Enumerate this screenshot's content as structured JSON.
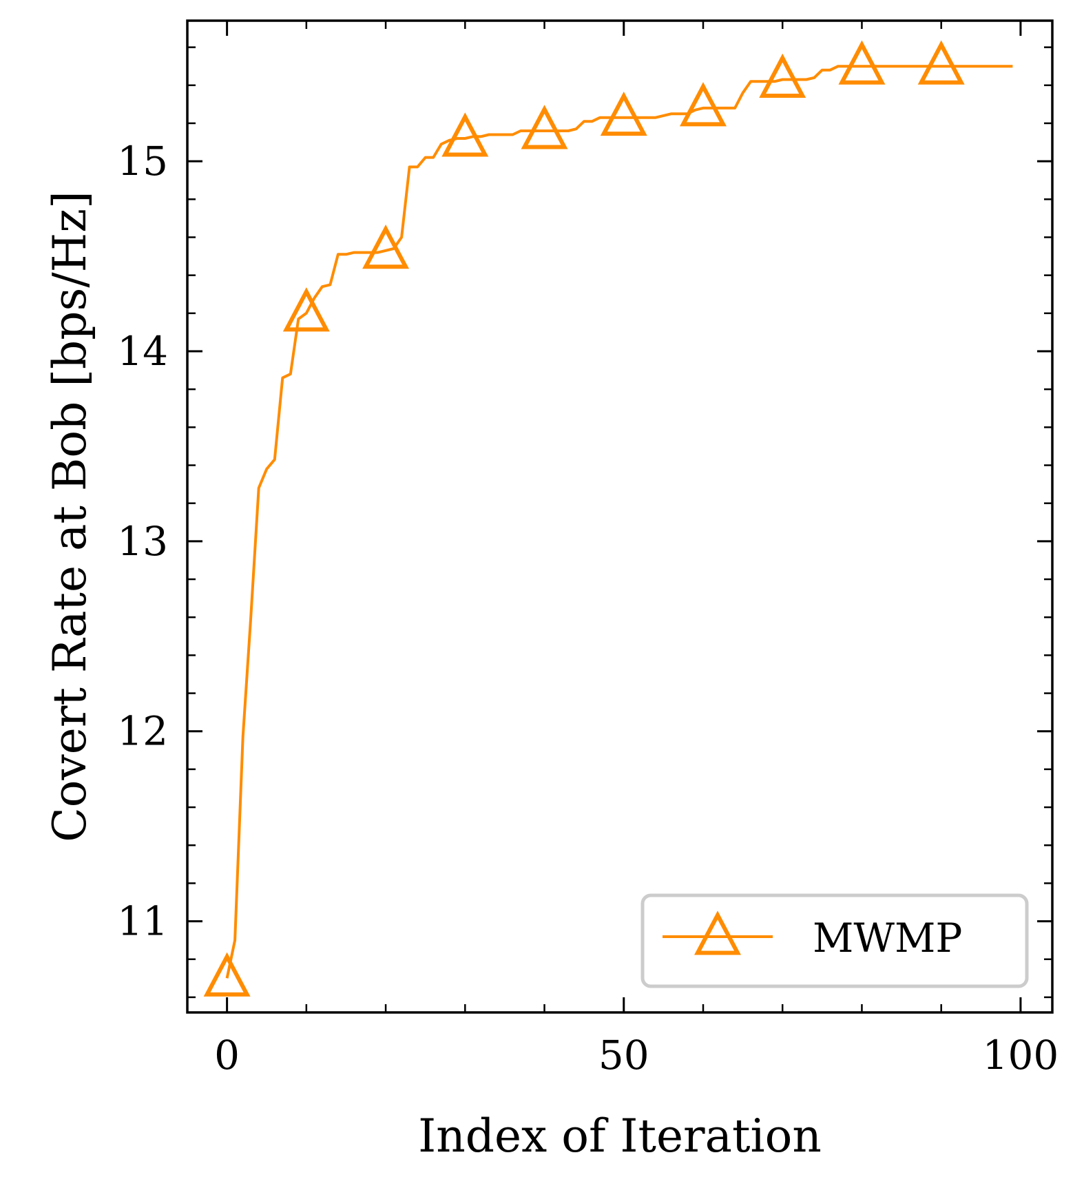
{
  "chart_data": {
    "type": "line",
    "title": "",
    "xlabel": "Index of Iteration",
    "ylabel": "Covert Rate at Bob [bps/Hz]",
    "xlim": [
      -5,
      104
    ],
    "ylim": [
      10.52,
      15.74
    ],
    "x_ticks": [
      0,
      50,
      100
    ],
    "x_tick_labels": [
      "0",
      "50",
      "100"
    ],
    "y_ticks": [
      11,
      12,
      13,
      14,
      15
    ],
    "y_tick_labels": [
      "11",
      "12",
      "13",
      "14",
      "15"
    ],
    "x_minor_step": 10,
    "y_minor_step": 0.2,
    "grid": false,
    "legend": {
      "position": "lower-right"
    },
    "series": [
      {
        "name": "MWMP",
        "color": "#ff8c00",
        "marker": "open-triangle-up",
        "marker_every": 10,
        "x": [
          0,
          1,
          2,
          3,
          4,
          5,
          6,
          7,
          8,
          9,
          10,
          11,
          12,
          13,
          14,
          15,
          16,
          17,
          18,
          19,
          20,
          21,
          22,
          23,
          24,
          25,
          26,
          27,
          28,
          29,
          30,
          31,
          32,
          33,
          34,
          35,
          36,
          37,
          38,
          39,
          40,
          41,
          42,
          43,
          44,
          45,
          46,
          47,
          48,
          49,
          50,
          51,
          52,
          53,
          54,
          55,
          56,
          57,
          58,
          59,
          60,
          61,
          62,
          63,
          64,
          65,
          66,
          67,
          68,
          69,
          70,
          71,
          72,
          73,
          74,
          75,
          76,
          77,
          78,
          79,
          80,
          81,
          82,
          83,
          84,
          85,
          86,
          87,
          88,
          89,
          90,
          91,
          92,
          93,
          94,
          95,
          96,
          97,
          98,
          99
        ],
        "values": [
          10.7,
          10.9,
          11.97,
          12.6,
          13.28,
          13.38,
          13.43,
          13.86,
          13.88,
          14.17,
          14.2,
          14.28,
          14.34,
          14.35,
          14.51,
          14.51,
          14.52,
          14.52,
          14.52,
          14.52,
          14.53,
          14.54,
          14.6,
          14.97,
          14.97,
          15.02,
          15.02,
          15.09,
          15.11,
          15.12,
          15.12,
          15.13,
          15.13,
          15.14,
          15.14,
          15.14,
          15.14,
          15.16,
          15.16,
          15.16,
          15.16,
          15.16,
          15.16,
          15.16,
          15.17,
          15.21,
          15.21,
          15.23,
          15.23,
          15.23,
          15.23,
          15.23,
          15.23,
          15.23,
          15.23,
          15.24,
          15.25,
          15.25,
          15.25,
          15.27,
          15.28,
          15.28,
          15.28,
          15.28,
          15.28,
          15.36,
          15.42,
          15.42,
          15.42,
          15.42,
          15.43,
          15.43,
          15.43,
          15.43,
          15.44,
          15.48,
          15.48,
          15.5,
          15.5,
          15.5,
          15.5,
          15.5,
          15.5,
          15.5,
          15.5,
          15.5,
          15.5,
          15.5,
          15.5,
          15.5,
          15.5,
          15.5,
          15.5,
          15.5,
          15.5,
          15.5,
          15.5,
          15.5,
          15.5,
          15.5
        ]
      }
    ]
  }
}
